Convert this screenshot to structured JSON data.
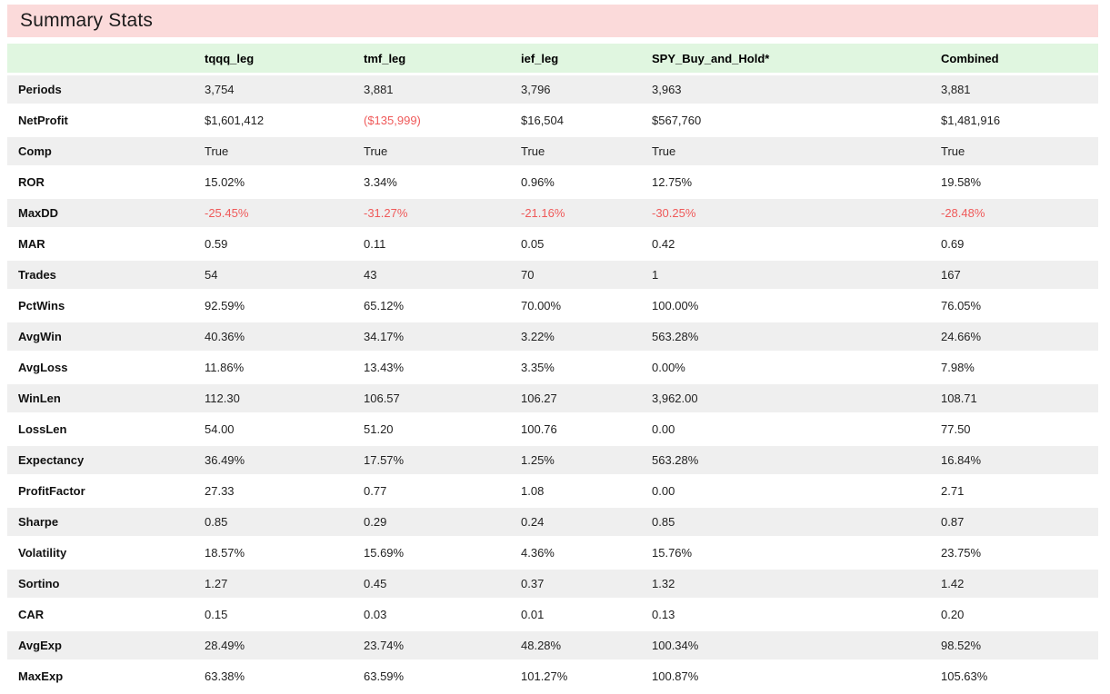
{
  "title": "Summary Stats",
  "colors": {
    "title_bg": "#fbdada",
    "header_bg": "#e0f6e0",
    "stripe_bg": "#efefef",
    "negative": "#ef5a5a"
  },
  "table": {
    "columns": [
      "tqqq_leg",
      "tmf_leg",
      "ief_leg",
      "SPY_Buy_and_Hold*",
      "Combined"
    ],
    "rows": [
      {
        "label": "Periods",
        "values": [
          "3,754",
          "3,881",
          "3,796",
          "3,963",
          "3,881"
        ],
        "negative": []
      },
      {
        "label": "NetProfit",
        "values": [
          "$1,601,412",
          "($135,999)",
          "$16,504",
          "$567,760",
          "$1,481,916"
        ],
        "negative": [
          1
        ]
      },
      {
        "label": "Comp",
        "values": [
          "True",
          "True",
          "True",
          "True",
          "True"
        ],
        "negative": []
      },
      {
        "label": "ROR",
        "values": [
          "15.02%",
          "3.34%",
          "0.96%",
          "12.75%",
          "19.58%"
        ],
        "negative": []
      },
      {
        "label": "MaxDD",
        "values": [
          "-25.45%",
          "-31.27%",
          "-21.16%",
          "-30.25%",
          "-28.48%"
        ],
        "negative": [
          0,
          1,
          2,
          3,
          4
        ]
      },
      {
        "label": "MAR",
        "values": [
          "0.59",
          "0.11",
          "0.05",
          "0.42",
          "0.69"
        ],
        "negative": []
      },
      {
        "label": "Trades",
        "values": [
          "54",
          "43",
          "70",
          "1",
          "167"
        ],
        "negative": []
      },
      {
        "label": "PctWins",
        "values": [
          "92.59%",
          "65.12%",
          "70.00%",
          "100.00%",
          "76.05%"
        ],
        "negative": []
      },
      {
        "label": "AvgWin",
        "values": [
          "40.36%",
          "34.17%",
          "3.22%",
          "563.28%",
          "24.66%"
        ],
        "negative": []
      },
      {
        "label": "AvgLoss",
        "values": [
          "11.86%",
          "13.43%",
          "3.35%",
          "0.00%",
          "7.98%"
        ],
        "negative": []
      },
      {
        "label": "WinLen",
        "values": [
          "112.30",
          "106.57",
          "106.27",
          "3,962.00",
          "108.71"
        ],
        "negative": []
      },
      {
        "label": "LossLen",
        "values": [
          "54.00",
          "51.20",
          "100.76",
          "0.00",
          "77.50"
        ],
        "negative": []
      },
      {
        "label": "Expectancy",
        "values": [
          "36.49%",
          "17.57%",
          "1.25%",
          "563.28%",
          "16.84%"
        ],
        "negative": []
      },
      {
        "label": "ProfitFactor",
        "values": [
          "27.33",
          "0.77",
          "1.08",
          "0.00",
          "2.71"
        ],
        "negative": []
      },
      {
        "label": "Sharpe",
        "values": [
          "0.85",
          "0.29",
          "0.24",
          "0.85",
          "0.87"
        ],
        "negative": []
      },
      {
        "label": "Volatility",
        "values": [
          "18.57%",
          "15.69%",
          "4.36%",
          "15.76%",
          "23.75%"
        ],
        "negative": []
      },
      {
        "label": "Sortino",
        "values": [
          "1.27",
          "0.45",
          "0.37",
          "1.32",
          "1.42"
        ],
        "negative": []
      },
      {
        "label": "CAR",
        "values": [
          "0.15",
          "0.03",
          "0.01",
          "0.13",
          "0.20"
        ],
        "negative": []
      },
      {
        "label": "AvgExp",
        "values": [
          "28.49%",
          "23.74%",
          "48.28%",
          "100.34%",
          "98.52%"
        ],
        "negative": []
      },
      {
        "label": "MaxExp",
        "values": [
          "63.38%",
          "63.59%",
          "101.27%",
          "100.87%",
          "105.63%"
        ],
        "negative": []
      }
    ]
  }
}
